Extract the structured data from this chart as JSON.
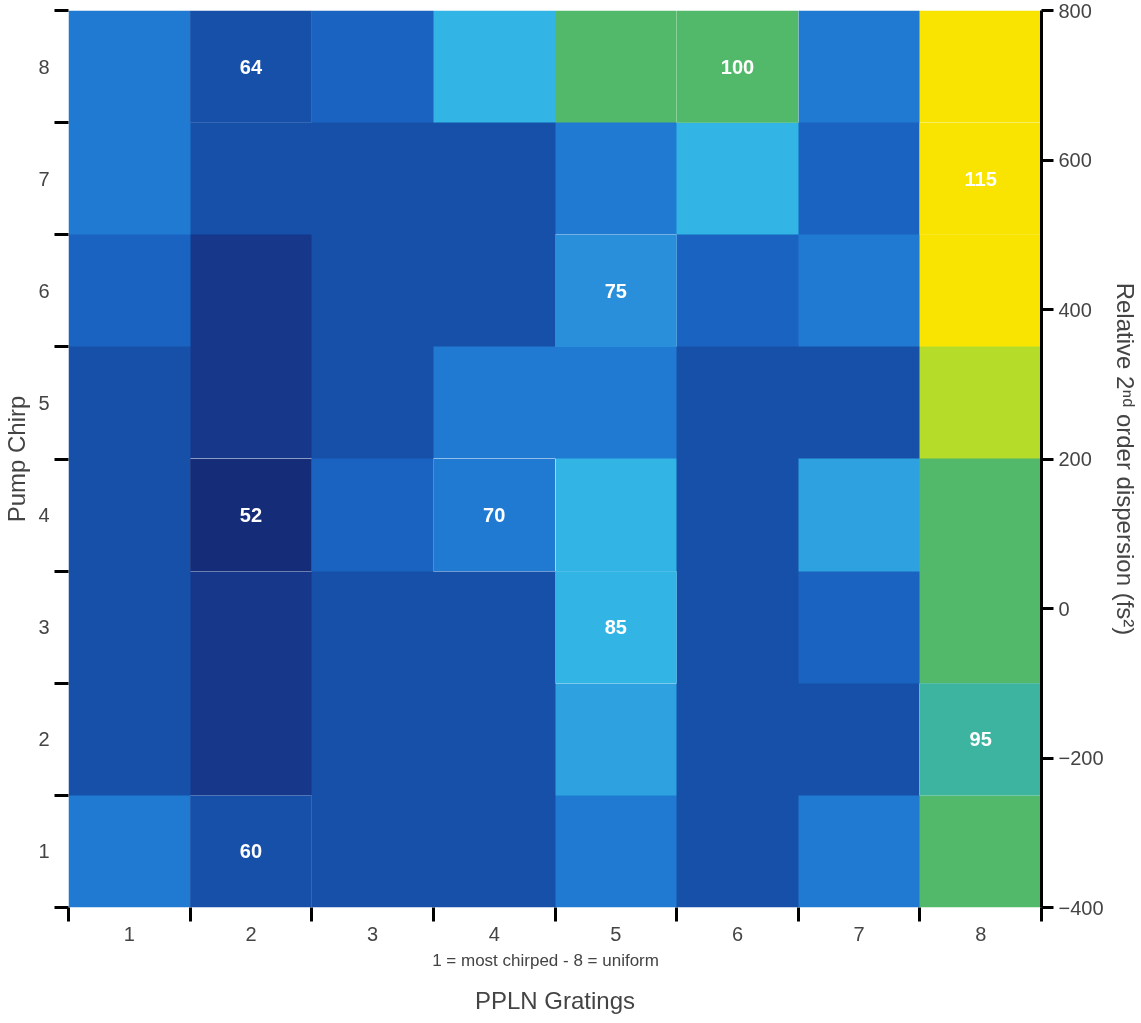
{
  "chart_data": {
    "type": "heatmap",
    "xlabel": "PPLN Gratings",
    "ylabel": "Pump Chirp",
    "y2label": "Relative 2ⁿᵈ order dispersion (fs²)",
    "annotations": [
      "1 = most chirped   -   8 = uniform"
    ],
    "categories": [
      "1",
      "2",
      "3",
      "4",
      "5",
      "6",
      "7",
      "8"
    ],
    "y_categories": [
      "8",
      "7",
      "6",
      "5",
      "4",
      "3",
      "2",
      "1"
    ],
    "cells": [
      [
        null,
        64,
        null,
        null,
        null,
        100,
        null,
        null
      ],
      [
        null,
        null,
        null,
        null,
        null,
        null,
        null,
        115
      ],
      [
        null,
        null,
        null,
        null,
        75,
        null,
        null,
        null
      ],
      [
        null,
        null,
        null,
        null,
        null,
        null,
        null,
        null
      ],
      [
        null,
        52,
        null,
        70,
        null,
        null,
        null,
        null
      ],
      [
        null,
        null,
        null,
        null,
        85,
        null,
        null,
        null
      ],
      [
        null,
        null,
        null,
        null,
        null,
        null,
        null,
        95
      ],
      [
        null,
        60,
        null,
        null,
        null,
        null,
        null,
        null
      ]
    ],
    "colors": [
      [
        "#207ad2",
        "#1650a8",
        "#1a63c0",
        "#32b5e5",
        "#52b96a",
        "#52b96a",
        "#207ad2",
        "#f8e400"
      ],
      [
        "#207ad2",
        "#1650a8",
        "#1650a8",
        "#1650a8",
        "#207ad2",
        "#32b5e5",
        "#1a63c0",
        "#f8e400"
      ],
      [
        "#1a63c0",
        "#16378a",
        "#1650a8",
        "#1650a8",
        "#2a8fda",
        "#1a63c0",
        "#207ad2",
        "#f8e400"
      ],
      [
        "#1650a8",
        "#16378a",
        "#1650a8",
        "#207ad2",
        "#207ad2",
        "#1650a8",
        "#1650a8",
        "#b4dc28"
      ],
      [
        "#1650a8",
        "#152d78",
        "#1a63c0",
        "#207ad2",
        "#32b5e5",
        "#1650a8",
        "#2ea2e0",
        "#52b96a"
      ],
      [
        "#1650a8",
        "#16378a",
        "#1650a8",
        "#1650a8",
        "#32b5e5",
        "#1650a8",
        "#1a63c0",
        "#52b96a"
      ],
      [
        "#1650a8",
        "#16378a",
        "#1650a8",
        "#1650a8",
        "#2ea2e0",
        "#1650a8",
        "#1650a8",
        "#3cb4a0"
      ],
      [
        "#207ad2",
        "#1650a8",
        "#1650a8",
        "#1650a8",
        "#207ad2",
        "#1650a8",
        "#207ad2",
        "#52b96a"
      ]
    ],
    "data_labels": true,
    "y2lim": [
      -400,
      800
    ],
    "y2ticks": [
      -400,
      -200,
      0,
      200,
      400,
      600,
      800
    ],
    "grid": false
  }
}
